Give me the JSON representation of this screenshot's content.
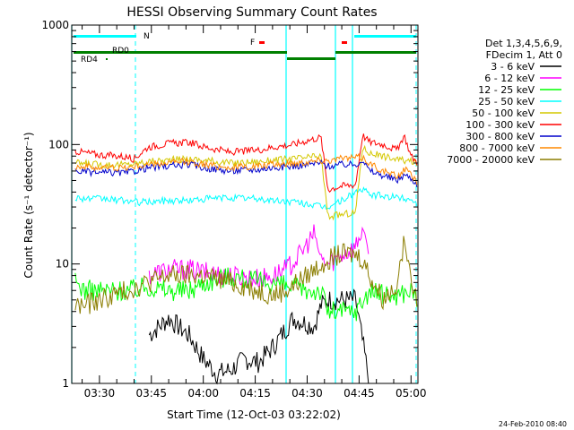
{
  "chart_data": {
    "type": "line",
    "title": "HESSI Observing Summary Count Rates",
    "xlabel": "Start Time (12-Oct-03 03:22:02)",
    "ylabel": "Count Rate (s⁻¹ detector⁻¹)",
    "y_scale": "log",
    "ylim": [
      1,
      1000
    ],
    "xlim_minutes": [
      202,
      302
    ],
    "x_tick_labels": [
      "03:30",
      "03:45",
      "04:00",
      "04:15",
      "04:30",
      "04:45",
      "05:00"
    ],
    "y_tick_labels": [
      "1",
      "10",
      "100",
      "1000"
    ],
    "legend_header": [
      "Det 1,3,4,5,6,9,",
      "FDecim 1, Att 0"
    ],
    "series": [
      {
        "name": "3 - 6 keV",
        "color": "#000000",
        "x": [
          210,
          218,
          224,
          230,
          236,
          240,
          244,
          248,
          252,
          256,
          260,
          266,
          272,
          274,
          276,
          280,
          284,
          288,
          290,
          293,
          296,
          300,
          302
        ],
        "y": [
          0,
          0,
          2.5,
          3.5,
          2.5,
          1.6,
          1.2,
          1.3,
          1.6,
          1.5,
          2.0,
          3.5,
          3.0,
          4.5,
          5.0,
          5.0,
          5.0,
          1.0,
          0,
          0,
          0,
          0,
          0
        ]
      },
      {
        "name": "6 - 12 keV",
        "color": "#ff00ff",
        "x": [
          203,
          210,
          218,
          224,
          230,
          236,
          240,
          248,
          256,
          260,
          264,
          268,
          272,
          274,
          276,
          280,
          284,
          286,
          288,
          292,
          296,
          300,
          302
        ],
        "y": [
          0,
          0,
          0,
          8,
          9,
          9,
          8.5,
          8,
          7.5,
          8,
          9,
          12,
          18,
          11,
          10,
          12,
          14,
          20,
          12,
          0,
          0,
          0,
          0
        ]
      },
      {
        "name": "12 - 25 keV",
        "color": "#00ff00",
        "x": [
          203,
          206,
          210,
          214,
          218,
          224,
          230,
          236,
          240,
          248,
          256,
          260,
          264,
          270,
          274,
          276,
          280,
          284,
          288,
          292,
          296,
          300,
          302
        ],
        "y": [
          7,
          6,
          6,
          6,
          6,
          6.5,
          6,
          6,
          7,
          8,
          7,
          7,
          6.5,
          6,
          6,
          4,
          4,
          4,
          6,
          5.5,
          5.5,
          6,
          5
        ]
      },
      {
        "name": "25 - 50 keV",
        "color": "#00ffff",
        "x": [
          203,
          208,
          212,
          216,
          218,
          220,
          224,
          230,
          236,
          240,
          248,
          256,
          260,
          266,
          270,
          274,
          276,
          280,
          284,
          286,
          288,
          292,
          296,
          300,
          302
        ],
        "y": [
          36,
          35,
          35,
          34,
          34,
          33,
          33,
          34,
          34,
          35,
          36,
          35,
          34,
          33,
          32,
          30,
          30,
          34,
          40,
          42,
          38,
          37,
          36,
          35,
          32
        ]
      },
      {
        "name": "50 - 100 keV",
        "color": "#d4c800",
        "x": [
          203,
          210,
          218,
          224,
          230,
          236,
          240,
          248,
          256,
          260,
          266,
          270,
          274,
          276,
          280,
          284,
          286,
          288,
          292,
          296,
          300,
          302
        ],
        "y": [
          70,
          68,
          68,
          72,
          74,
          76,
          74,
          70,
          72,
          74,
          76,
          78,
          80,
          25,
          26,
          27,
          95,
          85,
          80,
          75,
          72,
          70
        ]
      },
      {
        "name": "100 - 300 keV",
        "color": "#ff0000",
        "x": [
          203,
          210,
          216,
          218,
          220,
          224,
          230,
          236,
          240,
          248,
          256,
          260,
          266,
          270,
          274,
          276,
          280,
          284,
          286,
          288,
          292,
          296,
          298,
          300,
          302
        ],
        "y": [
          88,
          82,
          80,
          78,
          76,
          95,
          102,
          104,
          96,
          86,
          90,
          95,
          100,
          108,
          115,
          42,
          45,
          46,
          120,
          105,
          100,
          90,
          120,
          80,
          70
        ]
      },
      {
        "name": "300 - 800 keV",
        "color": "#0000cc",
        "x": [
          203,
          210,
          218,
          224,
          230,
          236,
          240,
          248,
          256,
          260,
          266,
          270,
          274,
          276,
          280,
          284,
          286,
          288,
          292,
          296,
          298,
          300,
          302
        ],
        "y": [
          60,
          58,
          58,
          64,
          66,
          68,
          64,
          60,
          62,
          64,
          66,
          68,
          70,
          66,
          68,
          68,
          75,
          60,
          55,
          50,
          56,
          52,
          46
        ]
      },
      {
        "name": "800 - 7000 keV",
        "color": "#ff8800",
        "x": [
          203,
          210,
          218,
          224,
          230,
          236,
          240,
          248,
          256,
          260,
          266,
          270,
          274,
          276,
          280,
          284,
          286,
          288,
          292,
          296,
          298,
          300,
          302
        ],
        "y": [
          66,
          64,
          64,
          68,
          70,
          72,
          68,
          64,
          66,
          68,
          70,
          72,
          74,
          74,
          76,
          78,
          78,
          70,
          60,
          54,
          62,
          56,
          48
        ]
      },
      {
        "name": "7000 - 20000 keV",
        "color": "#8b7d00",
        "x": [
          203,
          206,
          210,
          214,
          218,
          224,
          230,
          236,
          240,
          248,
          256,
          260,
          264,
          270,
          274,
          276,
          280,
          284,
          286,
          288,
          292,
          296,
          298,
          300,
          302
        ],
        "y": [
          4.5,
          4.5,
          5,
          5.5,
          6,
          7,
          8,
          8,
          8,
          7,
          6,
          5.5,
          6,
          8,
          10,
          11,
          12,
          12,
          11,
          8,
          5,
          7,
          15,
          8,
          5
        ]
      }
    ],
    "flags": [
      {
        "label": "N",
        "color": "#00ffff"
      },
      {
        "label": "RD0",
        "color": "#008000"
      },
      {
        "label": "RD4",
        "color": "#008000"
      },
      {
        "label": "F",
        "color": "#ff0000"
      }
    ]
  },
  "footer": {
    "date_stamp": "24-Feb-2010 08:40"
  }
}
